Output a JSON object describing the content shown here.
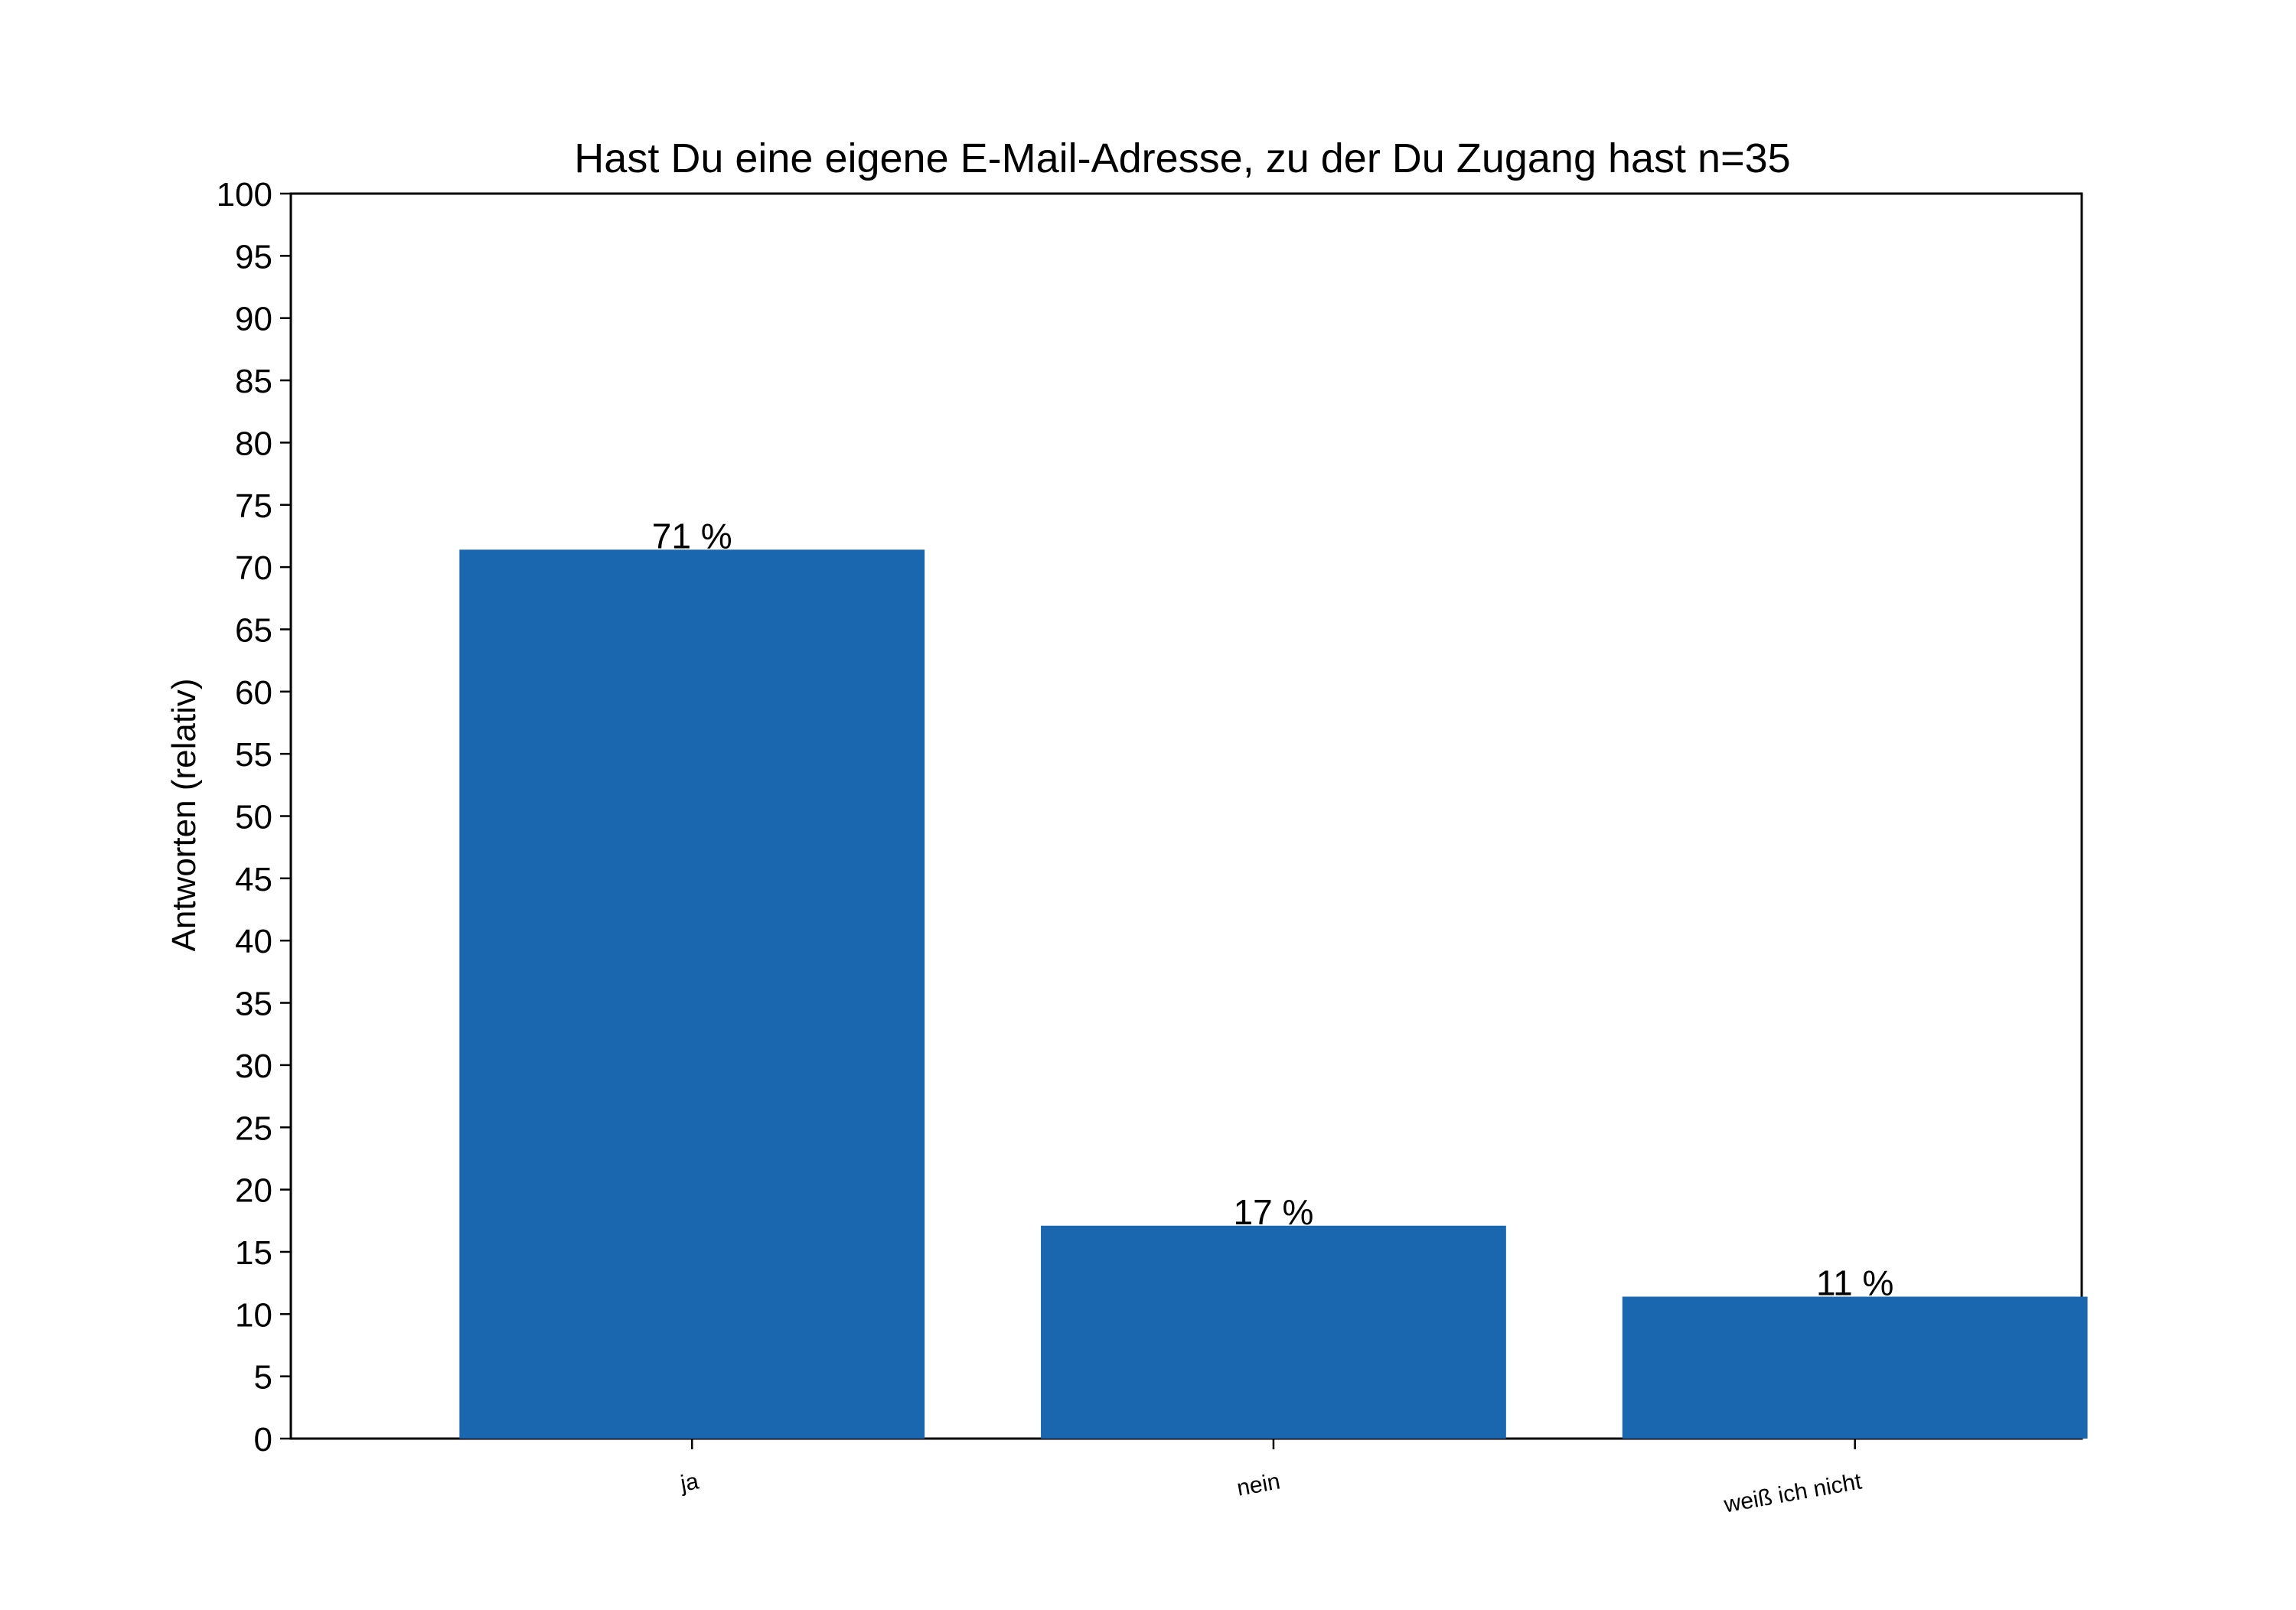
{
  "chart_data": {
    "type": "bar",
    "title": "Hast Du eine eigene E-Mail-Adresse, zu der Du Zugang hast n=35",
    "xlabel": "",
    "ylabel": "Antworten (relativ)",
    "categories": [
      "ja",
      "nein",
      "weiß ich nicht"
    ],
    "values": [
      71.4,
      17.1,
      11.4
    ],
    "value_labels": [
      "71 %",
      "17 %",
      "11 %"
    ],
    "ylim": [
      0,
      100
    ],
    "yticks": [
      "0",
      "5",
      "10",
      "15",
      "20",
      "25",
      "30",
      "35",
      "40",
      "45",
      "50",
      "55",
      "60",
      "65",
      "70",
      "75",
      "80",
      "85",
      "90",
      "95",
      "100"
    ],
    "bar_color": "#1a67b0",
    "grid": false,
    "legend": "none"
  }
}
